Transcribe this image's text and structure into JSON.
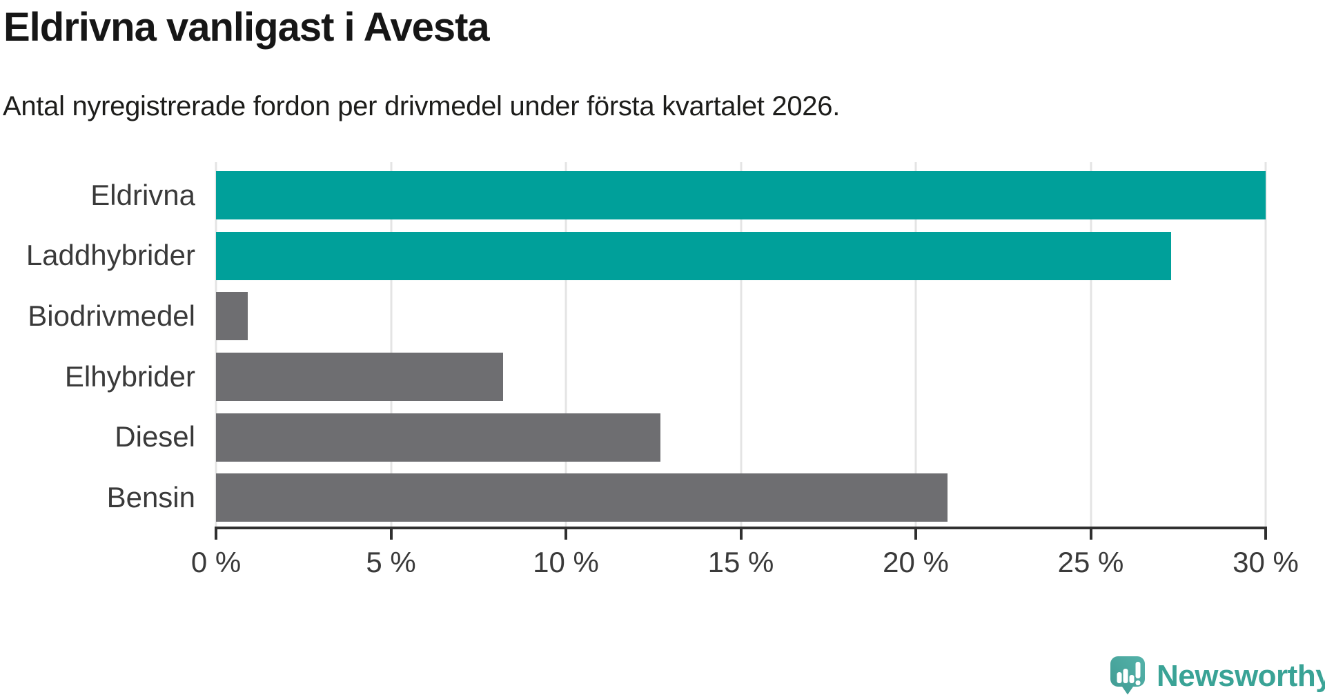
{
  "title": "Eldrivna vanligast i Avesta",
  "subtitle": "Antal nyregistrerade fordon per drivmedel under första kvartalet 2026.",
  "chart_data": {
    "type": "bar",
    "orientation": "horizontal",
    "categories": [
      "Eldrivna",
      "Laddhybrider",
      "Biodrivmedel",
      "Elhybrider",
      "Diesel",
      "Bensin"
    ],
    "values": [
      30.0,
      27.3,
      0.9,
      8.2,
      12.7,
      20.9
    ],
    "unit": "%",
    "highlighted_categories": [
      "Eldrivna",
      "Laddhybrider"
    ],
    "bar_colors": [
      "#00a09a",
      "#00a09a",
      "#6e6e71",
      "#6e6e71",
      "#6e6e71",
      "#6e6e71"
    ],
    "highlight_color": "#00a09a",
    "default_color": "#6e6e71",
    "xlim": [
      0,
      30
    ],
    "x_tick_values": [
      0,
      5,
      10,
      15,
      20,
      25,
      30
    ],
    "x_tick_labels": [
      "0 %",
      "5 %",
      "10 %",
      "15 %",
      "20 %",
      "25 %",
      "30 %"
    ],
    "grid": "vertical-light",
    "gridline_color": "#e4e4e4",
    "axis_color": "#303030",
    "label_color": "#3a3a3a",
    "legend": "none"
  },
  "footer": {
    "brand": "Newsworthy",
    "brand_color": "#3aa396",
    "logo_icon": "newsworthy-bubble-barchart-icon"
  }
}
